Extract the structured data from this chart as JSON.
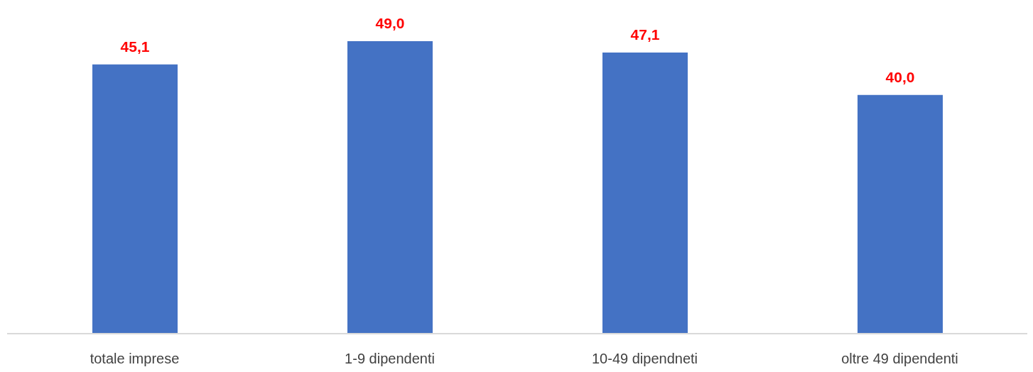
{
  "chart_data": {
    "type": "bar",
    "categories": [
      "totale imprese",
      "1-9 dipendenti",
      "10-49 dipendneti",
      "oltre 49 dipendenti"
    ],
    "values": [
      45.1,
      49.0,
      47.1,
      40.0
    ],
    "value_labels": [
      "45,1",
      "49,0",
      "47,1",
      "40,0"
    ],
    "color": "#4472c4",
    "tick_labels": "x"
  }
}
